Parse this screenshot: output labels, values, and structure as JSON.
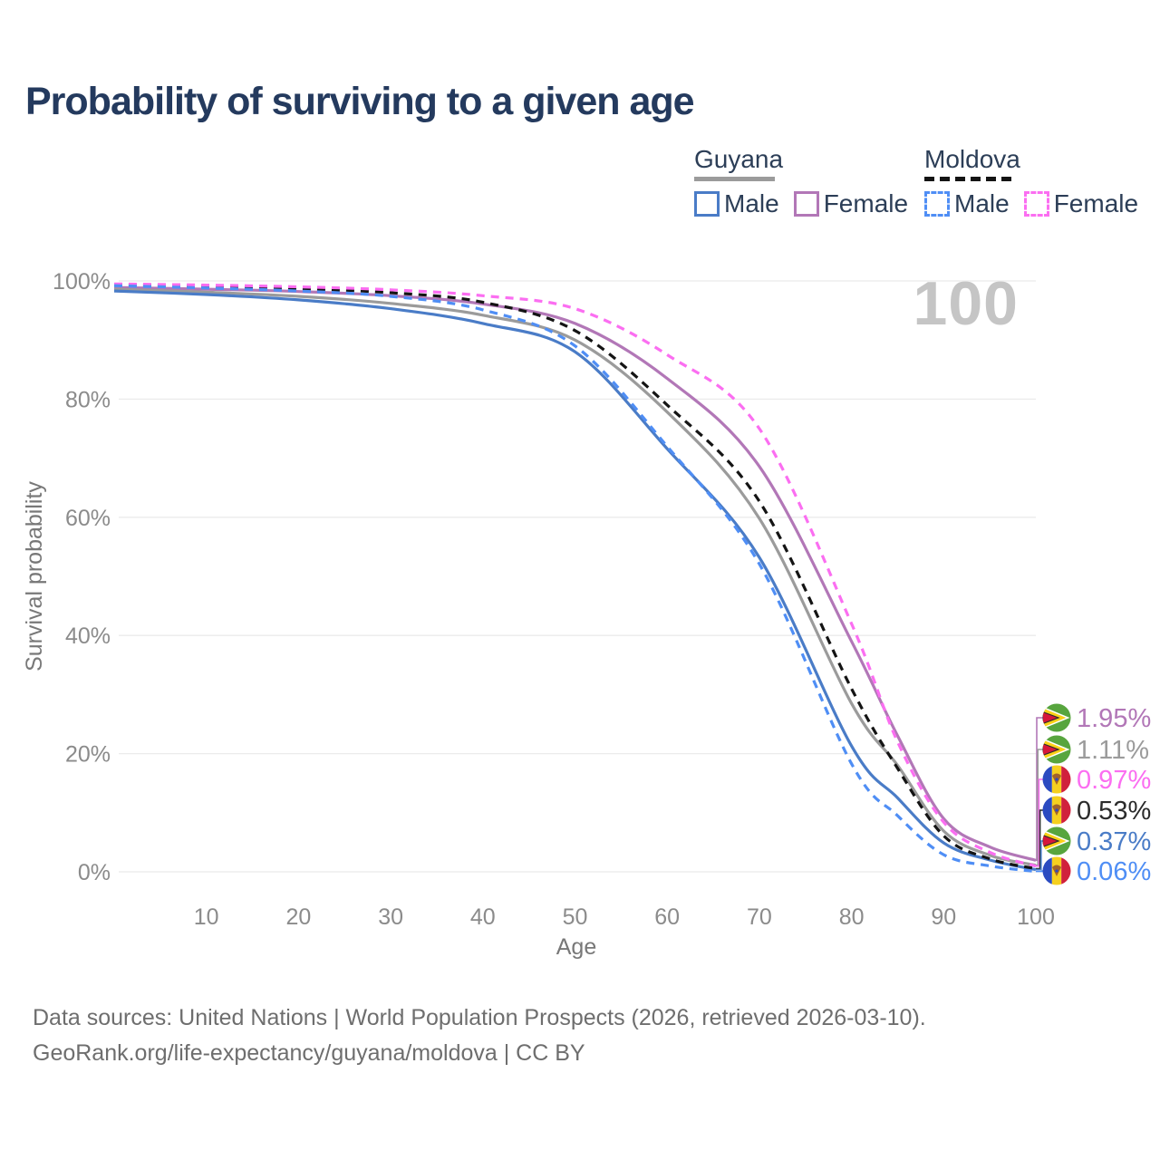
{
  "title": "Probability of surviving to a given age",
  "legend": {
    "groups": [
      {
        "label": "Guyana",
        "line_color": "#9b9b9b",
        "line_style": "solid",
        "items": [
          {
            "label": "Male",
            "color": "#4a7cc7",
            "style": "solid"
          },
          {
            "label": "Female",
            "color": "#b277b7",
            "style": "solid"
          }
        ]
      },
      {
        "label": "Moldova",
        "line_color": "#141414",
        "line_style": "dashed",
        "items": [
          {
            "label": "Male",
            "color": "#4f8ef5",
            "style": "dashed"
          },
          {
            "label": "Female",
            "color": "#fb6ef1",
            "style": "dashed"
          }
        ]
      }
    ]
  },
  "chart_data": {
    "type": "line",
    "title": "Probability of surviving to a given age",
    "xlabel": "Age",
    "ylabel": "Survival probability",
    "xlim": [
      0,
      100
    ],
    "ylim": [
      0,
      100
    ],
    "grid": "horizontal",
    "legend_position": "top-right",
    "hover_age": "100",
    "x_ticks": [
      10,
      20,
      30,
      40,
      50,
      60,
      70,
      80,
      90,
      100
    ],
    "y_tick_values": [
      0,
      20,
      40,
      60,
      80,
      100
    ],
    "y_tick_labels": [
      "0%",
      "20%",
      "40%",
      "60%",
      "80%",
      "100%"
    ],
    "x": [
      0,
      10,
      20,
      30,
      40,
      50,
      60,
      70,
      80,
      85,
      90,
      95,
      100
    ],
    "series": [
      {
        "name": "Guyana Female",
        "country": "Guyana",
        "sex": "Female",
        "color": "#b277b7",
        "dash": false,
        "end_label": "1.95%",
        "values": [
          98.9,
          98.6,
          98.2,
          97.5,
          96.1,
          92.8,
          83.5,
          68.6,
          39.0,
          23.0,
          9.0,
          4.2,
          1.95
        ]
      },
      {
        "name": "Guyana Both sexes",
        "country": "Guyana",
        "sex": "Both",
        "color": "#9b9b9b",
        "dash": false,
        "end_label": "1.11%",
        "values": [
          98.6,
          98.1,
          97.4,
          96.2,
          94.2,
          90.0,
          77.8,
          59.8,
          28.5,
          18.0,
          6.9,
          2.8,
          1.11
        ]
      },
      {
        "name": "Guyana Male",
        "country": "Guyana",
        "sex": "Male",
        "color": "#4a7cc7",
        "dash": false,
        "end_label": "0.37%",
        "values": [
          98.3,
          97.7,
          96.8,
          95.3,
          92.8,
          88.0,
          71.6,
          53.2,
          21.3,
          12.5,
          4.9,
          2.0,
          0.37
        ]
      },
      {
        "name": "Moldova Both sexes",
        "country": "Moldova",
        "sex": "Both",
        "color": "#141414",
        "dash": true,
        "end_label": "0.53%",
        "values": [
          99.4,
          99.1,
          98.7,
          98.0,
          96.4,
          91.6,
          79.0,
          62.7,
          31.0,
          17.5,
          6.1,
          2.2,
          0.53
        ]
      },
      {
        "name": "Moldova Female",
        "country": "Moldova",
        "sex": "Female",
        "color": "#fb6ef1",
        "dash": true,
        "end_label": "0.97%",
        "values": [
          99.5,
          99.3,
          99.0,
          98.5,
          97.5,
          95.3,
          87.5,
          75.0,
          42.0,
          22.0,
          8.4,
          3.3,
          0.97
        ]
      },
      {
        "name": "Moldova Male",
        "country": "Moldova",
        "sex": "Male",
        "color": "#4f8ef5",
        "dash": true,
        "end_label": "0.06%",
        "values": [
          99.2,
          98.8,
          98.3,
          97.4,
          95.1,
          89.0,
          72.0,
          52.1,
          18.3,
          9.5,
          2.9,
          1.0,
          0.06
        ]
      }
    ]
  },
  "end_labels": [
    {
      "flag": "guyana",
      "value": "1.95%",
      "color": "#b277b7"
    },
    {
      "flag": "guyana",
      "value": "1.11%",
      "color": "#9b9b9b"
    },
    {
      "flag": "moldova",
      "value": "0.97%",
      "color": "#fb6ef1"
    },
    {
      "flag": "moldova",
      "value": "0.53%",
      "color": "#2b2b2b"
    },
    {
      "flag": "guyana",
      "value": "0.37%",
      "color": "#4a7cc7"
    },
    {
      "flag": "moldova",
      "value": "0.06%",
      "color": "#4f8ef5"
    }
  ],
  "footer": {
    "line1": "Data sources: United Nations | World Population Prospects (2026, retrieved 2026-03-10).",
    "line2": "GeoRank.org/life-expectancy/guyana/moldova | CC BY"
  }
}
